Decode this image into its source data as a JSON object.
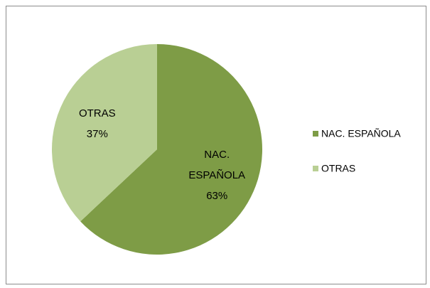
{
  "chart_data": {
    "type": "pie",
    "categories": [
      "NAC. ESPAÑOLA",
      "OTRAS"
    ],
    "values": [
      63,
      37
    ],
    "value_labels": [
      "63%",
      "37%"
    ],
    "colors": [
      "#7e9c46",
      "#b9cf94"
    ],
    "legend": "right"
  }
}
